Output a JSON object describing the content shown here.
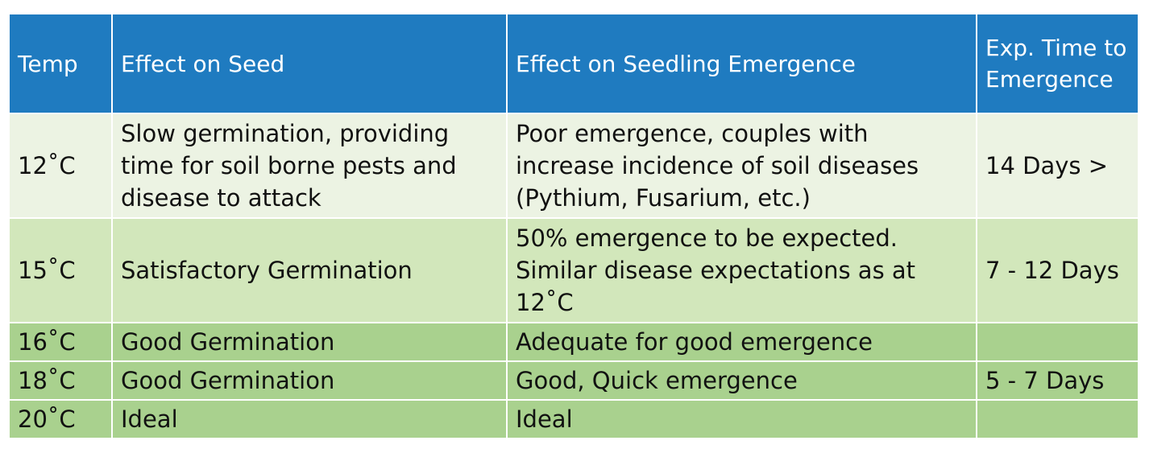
{
  "table": {
    "headers": [
      "Temp",
      "Effect on Seed",
      "Effect on Seedling Emergence",
      "Exp. Time to Emergence"
    ],
    "rows": [
      [
        "12˚C",
        "Slow germination, providing time for soil borne pests and disease to attack",
        "Poor emergence, couples with increase incidence of soil diseases (Pythium, Fusarium, etc.)",
        "14 Days >"
      ],
      [
        "15˚C",
        "Satisfactory Germination",
        "50% emergence to be expected. Similar disease expectations as at 12˚C",
        "7 - 12 Days"
      ],
      [
        "16˚C",
        "Good Germination",
        "Adequate for good emergence",
        ""
      ],
      [
        "18˚C",
        "Good Germination",
        "Good, Quick emergence",
        "5 - 7 Days"
      ],
      [
        "20˚C",
        "Ideal",
        "Ideal",
        ""
      ]
    ]
  },
  "colors": {
    "header": "#1f7bc0",
    "row_light": "#ecf3e3",
    "row_mid": "#d2e7bb",
    "row_dark": "#a9d18e"
  }
}
